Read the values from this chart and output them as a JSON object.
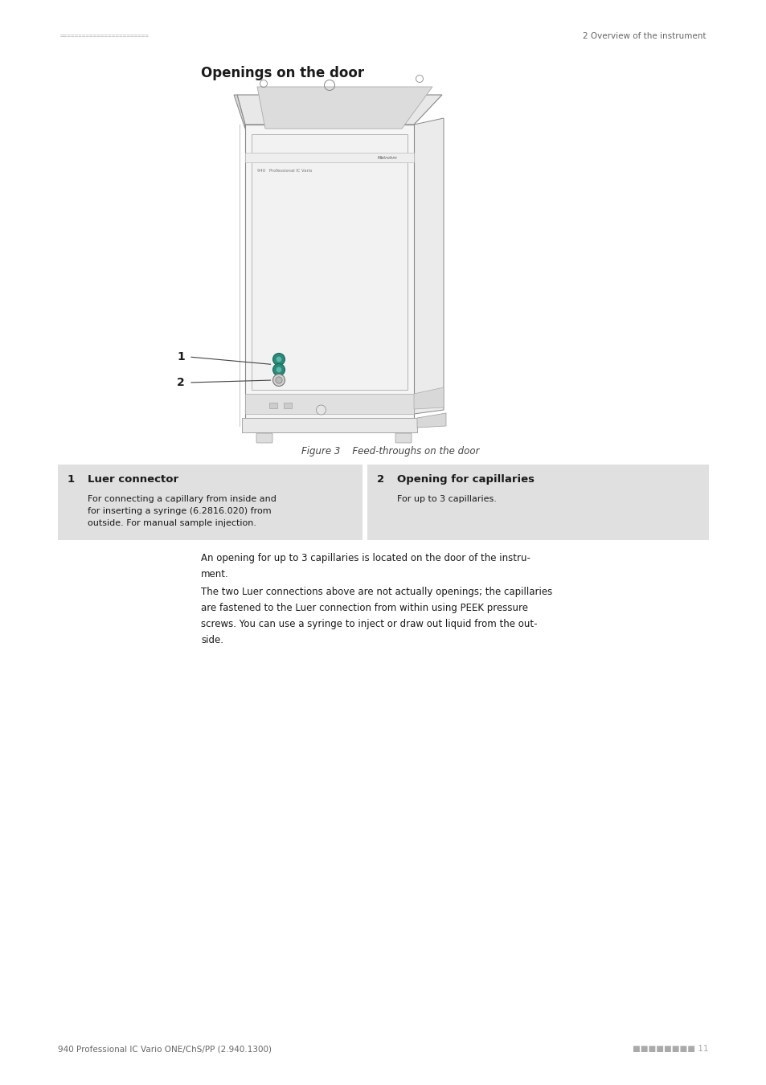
{
  "background_color": "#ffffff",
  "page_width": 9.54,
  "page_height": 13.5,
  "header_left_squares": "========================",
  "header_right_text": "2 Overview of the instrument",
  "section_title": "Openings on the door",
  "figure_caption": "Figure 3    Feed-throughs on the door",
  "footer_left": "940 Professional IC Vario ONE/ChS/PP (2.940.1300)",
  "footer_right": "■■■■■■■■ 11",
  "table_bg": "#e0e0e0",
  "item1_number": "1",
  "item1_title": "Luer connector",
  "item1_text": "For connecting a capillary from inside and\nfor inserting a syringe (6.2816.020) from\noutside. For manual sample injection.",
  "item2_number": "2",
  "item2_title": "Opening for capillaries",
  "item2_text": "For up to 3 capillaries.",
  "para1": "An opening for up to 3 capillaries is located on the door of the instru-\nment.",
  "para2": "The two Luer connections above are not actually openings; the capillaries\nare fastened to the Luer connection from within using PEEK pressure\nscrews. You can use a syringe to inject or draw out liquid from the out-\nside.",
  "dot_teal": "#2a8a7a",
  "dot_gray": "#999999",
  "header_sq_color": "#bbbbbb",
  "footer_sq_color": "#aaaaaa",
  "line_color": "#888888",
  "text_dark": "#1a1a1a",
  "text_med": "#444444",
  "text_light": "#666666"
}
